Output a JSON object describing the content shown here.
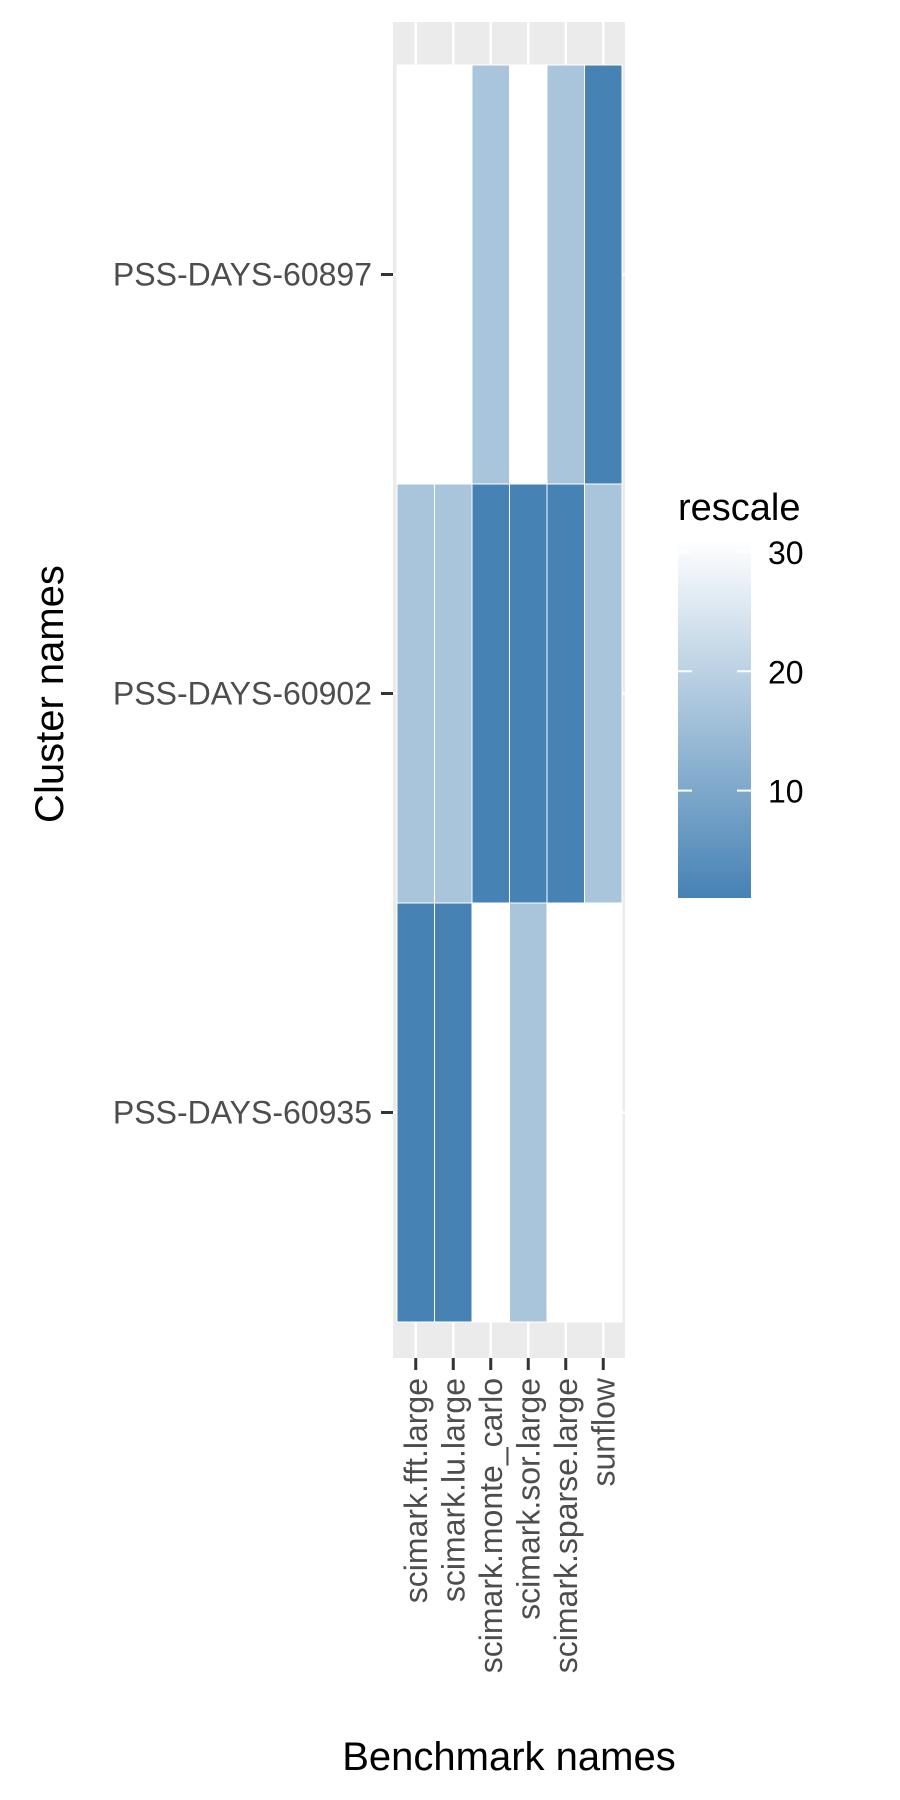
{
  "chart_data": {
    "type": "heatmap",
    "xlabel": "Benchmark names",
    "ylabel": "Cluster names",
    "x_categories": [
      "scimark.fft.large",
      "scimark.lu.large",
      "scimark.monte_carlo",
      "scimark.sor.large",
      "scimark.sparse.large",
      "sunflow"
    ],
    "y_categories": [
      "PSS-DAYS-60897",
      "PSS-DAYS-60902",
      "PSS-DAYS-60935"
    ],
    "values": [
      [
        31,
        31,
        17,
        31,
        17,
        1
      ],
      [
        17,
        17,
        1,
        1,
        1,
        17
      ],
      [
        1,
        1,
        31,
        17,
        31,
        31
      ]
    ],
    "legend": {
      "title": "rescale",
      "ticks": [
        10,
        20,
        30
      ],
      "range": [
        1,
        31
      ],
      "colors": {
        "low": "#4682b4",
        "high": "#ffffff"
      },
      "placement": "right"
    },
    "panel_background": "#ebebeb",
    "grid": true
  }
}
